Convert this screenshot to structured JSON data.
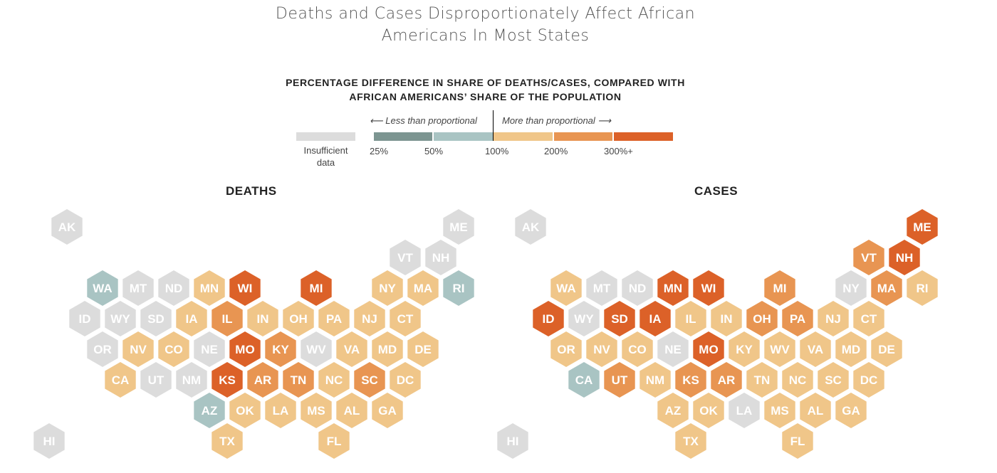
{
  "title": "Deaths and Cases Disproportionately Affect African Americans In Most States",
  "title_lines": [
    "Deaths and Cases Disproportionately Affect African",
    "Americans In Most States"
  ],
  "subtitle_lines": [
    "PERCENTAGE DIFFERENCE IN SHARE OF DEATHS/CASES, COMPARED WITH",
    "AFRICAN AMERICANS’ SHARE OF THE POPULATION"
  ],
  "legend": {
    "less_label": "⟵ Less than proportional",
    "more_label": "More than proportional ⟶",
    "insufficient_label_lines": [
      "Insufficient",
      "data"
    ],
    "ticks": [
      "25%",
      "50%",
      "100%",
      "200%",
      "300%+"
    ],
    "colors": {
      "insufficient": "#dcdcdc",
      "lt50": "#7c9591",
      "50to100": "#a9c4c3",
      "100to200": "#f0c689",
      "200to300": "#e89552",
      "300plus": "#dc6128"
    }
  },
  "chart_data": [
    {
      "type": "hex-tile-map",
      "title": "DEATHS",
      "categories": [
        "insufficient",
        "lt50",
        "50to100",
        "100to200",
        "200to300",
        "300plus"
      ],
      "states": [
        {
          "state": "AK",
          "row": 0,
          "col": 0,
          "category": "insufficient"
        },
        {
          "state": "ME",
          "row": 0,
          "col": 11,
          "category": "insufficient"
        },
        {
          "state": "VT",
          "row": 1,
          "col": 10,
          "category": "insufficient"
        },
        {
          "state": "NH",
          "row": 1,
          "col": 11,
          "category": "insufficient"
        },
        {
          "state": "WA",
          "row": 2,
          "col": 1,
          "category": "50to100"
        },
        {
          "state": "MT",
          "row": 2,
          "col": 2,
          "category": "insufficient"
        },
        {
          "state": "ND",
          "row": 2,
          "col": 3,
          "category": "insufficient"
        },
        {
          "state": "MN",
          "row": 2,
          "col": 4,
          "category": "100to200"
        },
        {
          "state": "WI",
          "row": 2,
          "col": 5,
          "category": "300plus"
        },
        {
          "state": "MI",
          "row": 2,
          "col": 7,
          "category": "300plus"
        },
        {
          "state": "NY",
          "row": 2,
          "col": 9,
          "category": "100to200"
        },
        {
          "state": "MA",
          "row": 2,
          "col": 10,
          "category": "100to200"
        },
        {
          "state": "RI",
          "row": 2,
          "col": 11,
          "category": "50to100"
        },
        {
          "state": "ID",
          "row": 3,
          "col": 1,
          "category": "insufficient"
        },
        {
          "state": "WY",
          "row": 3,
          "col": 2,
          "category": "insufficient"
        },
        {
          "state": "SD",
          "row": 3,
          "col": 3,
          "category": "insufficient"
        },
        {
          "state": "IA",
          "row": 3,
          "col": 4,
          "category": "100to200"
        },
        {
          "state": "IL",
          "row": 3,
          "col": 5,
          "category": "200to300"
        },
        {
          "state": "IN",
          "row": 3,
          "col": 6,
          "category": "100to200"
        },
        {
          "state": "OH",
          "row": 3,
          "col": 7,
          "category": "100to200"
        },
        {
          "state": "PA",
          "row": 3,
          "col": 8,
          "category": "100to200"
        },
        {
          "state": "NJ",
          "row": 3,
          "col": 9,
          "category": "100to200"
        },
        {
          "state": "CT",
          "row": 3,
          "col": 10,
          "category": "100to200"
        },
        {
          "state": "OR",
          "row": 4,
          "col": 1,
          "category": "insufficient"
        },
        {
          "state": "NV",
          "row": 4,
          "col": 2,
          "category": "100to200"
        },
        {
          "state": "CO",
          "row": 4,
          "col": 3,
          "category": "100to200"
        },
        {
          "state": "NE",
          "row": 4,
          "col": 4,
          "category": "insufficient"
        },
        {
          "state": "MO",
          "row": 4,
          "col": 5,
          "category": "300plus"
        },
        {
          "state": "KY",
          "row": 4,
          "col": 6,
          "category": "200to300"
        },
        {
          "state": "WV",
          "row": 4,
          "col": 7,
          "category": "insufficient"
        },
        {
          "state": "VA",
          "row": 4,
          "col": 8,
          "category": "100to200"
        },
        {
          "state": "MD",
          "row": 4,
          "col": 9,
          "category": "100to200"
        },
        {
          "state": "DE",
          "row": 4,
          "col": 10,
          "category": "100to200"
        },
        {
          "state": "CA",
          "row": 5,
          "col": 2,
          "category": "100to200"
        },
        {
          "state": "UT",
          "row": 5,
          "col": 3,
          "category": "insufficient"
        },
        {
          "state": "NM",
          "row": 5,
          "col": 4,
          "category": "insufficient"
        },
        {
          "state": "KS",
          "row": 5,
          "col": 5,
          "category": "300plus"
        },
        {
          "state": "AR",
          "row": 5,
          "col": 6,
          "category": "200to300"
        },
        {
          "state": "TN",
          "row": 5,
          "col": 7,
          "category": "200to300"
        },
        {
          "state": "NC",
          "row": 5,
          "col": 8,
          "category": "100to200"
        },
        {
          "state": "SC",
          "row": 5,
          "col": 9,
          "category": "200to300"
        },
        {
          "state": "DC",
          "row": 5,
          "col": 10,
          "category": "100to200"
        },
        {
          "state": "AZ",
          "row": 6,
          "col": 4,
          "category": "50to100"
        },
        {
          "state": "OK",
          "row": 6,
          "col": 5,
          "category": "100to200"
        },
        {
          "state": "LA",
          "row": 6,
          "col": 6,
          "category": "100to200"
        },
        {
          "state": "MS",
          "row": 6,
          "col": 7,
          "category": "100to200"
        },
        {
          "state": "AL",
          "row": 6,
          "col": 8,
          "category": "100to200"
        },
        {
          "state": "GA",
          "row": 6,
          "col": 9,
          "category": "100to200"
        },
        {
          "state": "HI",
          "row": 7,
          "col": 0,
          "category": "insufficient"
        },
        {
          "state": "TX",
          "row": 7,
          "col": 5,
          "category": "100to200"
        },
        {
          "state": "FL",
          "row": 7,
          "col": 8,
          "category": "100to200"
        }
      ]
    },
    {
      "type": "hex-tile-map",
      "title": "CASES",
      "categories": [
        "insufficient",
        "lt50",
        "50to100",
        "100to200",
        "200to300",
        "300plus"
      ],
      "states": [
        {
          "state": "AK",
          "row": 0,
          "col": 0,
          "category": "insufficient"
        },
        {
          "state": "ME",
          "row": 0,
          "col": 11,
          "category": "300plus"
        },
        {
          "state": "VT",
          "row": 1,
          "col": 10,
          "category": "200to300"
        },
        {
          "state": "NH",
          "row": 1,
          "col": 11,
          "category": "300plus"
        },
        {
          "state": "WA",
          "row": 2,
          "col": 1,
          "category": "100to200"
        },
        {
          "state": "MT",
          "row": 2,
          "col": 2,
          "category": "insufficient"
        },
        {
          "state": "ND",
          "row": 2,
          "col": 3,
          "category": "insufficient"
        },
        {
          "state": "MN",
          "row": 2,
          "col": 4,
          "category": "300plus"
        },
        {
          "state": "WI",
          "row": 2,
          "col": 5,
          "category": "300plus"
        },
        {
          "state": "MI",
          "row": 2,
          "col": 7,
          "category": "200to300"
        },
        {
          "state": "NY",
          "row": 2,
          "col": 9,
          "category": "insufficient"
        },
        {
          "state": "MA",
          "row": 2,
          "col": 10,
          "category": "200to300"
        },
        {
          "state": "RI",
          "row": 2,
          "col": 11,
          "category": "100to200"
        },
        {
          "state": "ID",
          "row": 3,
          "col": 1,
          "category": "300plus"
        },
        {
          "state": "WY",
          "row": 3,
          "col": 2,
          "category": "insufficient"
        },
        {
          "state": "SD",
          "row": 3,
          "col": 3,
          "category": "300plus"
        },
        {
          "state": "IA",
          "row": 3,
          "col": 4,
          "category": "300plus"
        },
        {
          "state": "IL",
          "row": 3,
          "col": 5,
          "category": "100to200"
        },
        {
          "state": "IN",
          "row": 3,
          "col": 6,
          "category": "100to200"
        },
        {
          "state": "OH",
          "row": 3,
          "col": 7,
          "category": "200to300"
        },
        {
          "state": "PA",
          "row": 3,
          "col": 8,
          "category": "200to300"
        },
        {
          "state": "NJ",
          "row": 3,
          "col": 9,
          "category": "100to200"
        },
        {
          "state": "CT",
          "row": 3,
          "col": 10,
          "category": "100to200"
        },
        {
          "state": "OR",
          "row": 4,
          "col": 1,
          "category": "100to200"
        },
        {
          "state": "NV",
          "row": 4,
          "col": 2,
          "category": "100to200"
        },
        {
          "state": "CO",
          "row": 4,
          "col": 3,
          "category": "100to200"
        },
        {
          "state": "NE",
          "row": 4,
          "col": 4,
          "category": "insufficient"
        },
        {
          "state": "MO",
          "row": 4,
          "col": 5,
          "category": "300plus"
        },
        {
          "state": "KY",
          "row": 4,
          "col": 6,
          "category": "100to200"
        },
        {
          "state": "WV",
          "row": 4,
          "col": 7,
          "category": "100to200"
        },
        {
          "state": "VA",
          "row": 4,
          "col": 8,
          "category": "100to200"
        },
        {
          "state": "MD",
          "row": 4,
          "col": 9,
          "category": "100to200"
        },
        {
          "state": "DE",
          "row": 4,
          "col": 10,
          "category": "100to200"
        },
        {
          "state": "CA",
          "row": 5,
          "col": 2,
          "category": "50to100"
        },
        {
          "state": "UT",
          "row": 5,
          "col": 3,
          "category": "200to300"
        },
        {
          "state": "NM",
          "row": 5,
          "col": 4,
          "category": "100to200"
        },
        {
          "state": "KS",
          "row": 5,
          "col": 5,
          "category": "200to300"
        },
        {
          "state": "AR",
          "row": 5,
          "col": 6,
          "category": "200to300"
        },
        {
          "state": "TN",
          "row": 5,
          "col": 7,
          "category": "100to200"
        },
        {
          "state": "NC",
          "row": 5,
          "col": 8,
          "category": "100to200"
        },
        {
          "state": "SC",
          "row": 5,
          "col": 9,
          "category": "100to200"
        },
        {
          "state": "DC",
          "row": 5,
          "col": 10,
          "category": "100to200"
        },
        {
          "state": "AZ",
          "row": 6,
          "col": 4,
          "category": "100to200"
        },
        {
          "state": "OK",
          "row": 6,
          "col": 5,
          "category": "100to200"
        },
        {
          "state": "LA",
          "row": 6,
          "col": 6,
          "category": "insufficient"
        },
        {
          "state": "MS",
          "row": 6,
          "col": 7,
          "category": "100to200"
        },
        {
          "state": "AL",
          "row": 6,
          "col": 8,
          "category": "100to200"
        },
        {
          "state": "GA",
          "row": 6,
          "col": 9,
          "category": "100to200"
        },
        {
          "state": "HI",
          "row": 7,
          "col": 0,
          "category": "insufficient"
        },
        {
          "state": "TX",
          "row": 7,
          "col": 5,
          "category": "100to200"
        },
        {
          "state": "FL",
          "row": 7,
          "col": 8,
          "category": "100to200"
        }
      ]
    }
  ]
}
